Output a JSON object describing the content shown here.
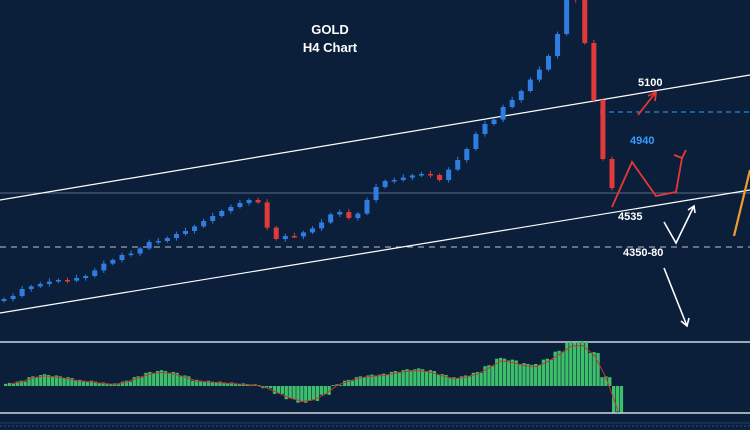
{
  "title_line1": "GOLD",
  "title_line2": "H4 Chart",
  "colors": {
    "background": "#0b1f3a",
    "bull_candle": "#2f7de0",
    "bear_candle": "#e03a3a",
    "channel": "#ffffff",
    "histogram": "#3dbf6c",
    "signal_line": "#c0392b",
    "target_blue": "#3a9bff",
    "projection_red": "#e53935",
    "projection_white": "#ffffff",
    "orange_arrow": "#f39c33"
  },
  "chart_data": {
    "type": "candlestick",
    "title": "GOLD H4 Chart",
    "price_levels": [
      {
        "label": "5100",
        "value": 5100,
        "kind": "target"
      },
      {
        "label": "4940",
        "value": 4940,
        "kind": "dashed-level"
      },
      {
        "label": "4535",
        "value": 4535,
        "kind": "support"
      },
      {
        "label": "4350-80",
        "value": 4365,
        "kind": "dashed-level"
      }
    ],
    "close_trend": [
      4005,
      4020,
      4055,
      4068,
      4080,
      4092,
      4100,
      4097,
      4110,
      4120,
      4148,
      4182,
      4200,
      4225,
      4232,
      4258,
      4290,
      4295,
      4310,
      4330,
      4345,
      4368,
      4395,
      4420,
      4445,
      4465,
      4485,
      4500,
      4488,
      4362,
      4305,
      4320,
      4318,
      4338,
      4358,
      4388,
      4428,
      4440,
      4410,
      4432,
      4500,
      4565,
      4595,
      4600,
      4612,
      4623,
      4630,
      4625,
      4600,
      4652,
      4700,
      4755,
      4830,
      4880,
      4902,
      4965,
      5000,
      5045,
      5102,
      5152,
      5220,
      5330,
      5510,
      5500,
      5285,
      5000,
      4705,
      4560
    ],
    "annotations": [
      "5100",
      "4940",
      "4535",
      "4350-80"
    ],
    "indicator": {
      "type": "histogram",
      "values": [
        0.05,
        0.1,
        0.2,
        0.25,
        0.22,
        0.18,
        0.12,
        0.1,
        0.06,
        0.04,
        0.1,
        0.2,
        0.3,
        0.34,
        0.3,
        0.22,
        0.12,
        0.1,
        0.08,
        0.06,
        0.04,
        0.02,
        -0.05,
        -0.18,
        -0.3,
        -0.38,
        -0.34,
        -0.2,
        0.02,
        0.12,
        0.2,
        0.24,
        0.26,
        0.32,
        0.36,
        0.38,
        0.34,
        0.25,
        0.18,
        0.22,
        0.3,
        0.45,
        0.62,
        0.58,
        0.5,
        0.48,
        0.6,
        0.78,
        0.98,
        1.0,
        0.75,
        0.2,
        -0.6
      ]
    }
  }
}
